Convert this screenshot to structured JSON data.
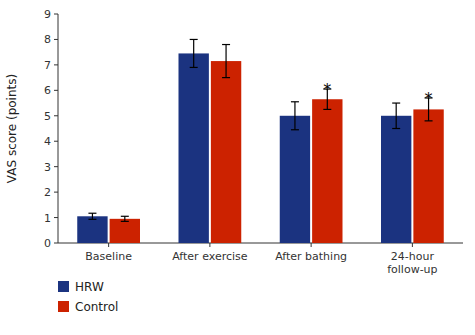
{
  "chart_data": {
    "type": "bar",
    "ylabel": "VAS score (points)",
    "categories": [
      "Baseline",
      "After exercise",
      "After bathing",
      "24-hour\nfollow-up"
    ],
    "series": [
      {
        "name": "HRW",
        "color": "#1b3380",
        "values": [
          1.05,
          7.45,
          5.0,
          5.0
        ],
        "errors": [
          0.12,
          0.55,
          0.55,
          0.5
        ]
      },
      {
        "name": "Control",
        "color": "#cc2200",
        "values": [
          0.95,
          7.15,
          5.65,
          5.25
        ],
        "errors": [
          0.1,
          0.65,
          0.4,
          0.45
        ]
      }
    ],
    "annotations": [
      {
        "text": "*",
        "category": "After bathing",
        "series": "Control"
      },
      {
        "text": "*",
        "category": "24-hour\nfollow-up",
        "series": "Control"
      }
    ],
    "ylim": [
      0,
      9
    ],
    "yticks": [
      0,
      1,
      2,
      3,
      4,
      5,
      6,
      7,
      8,
      9
    ],
    "grid": false,
    "legend": "bottom-left"
  }
}
